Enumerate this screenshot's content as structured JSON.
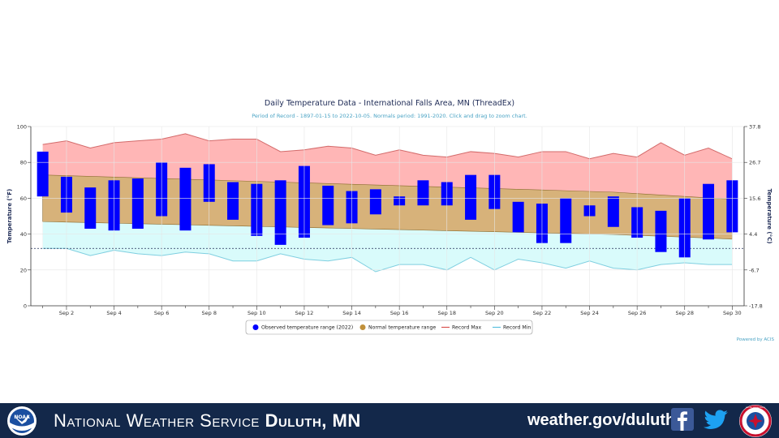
{
  "chart_data": {
    "type": "bar",
    "title": "Daily Temperature Data - International Falls Area, MN (ThreadEx)",
    "subtitle": "Period of Record - 1897-01-15 to 2022-10-05. Normals period: 1991-2020. Click and drag to zoom chart.",
    "ylabel": "Temperature (°F)",
    "ylabel_right": "Temperature (°C)",
    "ylim": [
      0,
      100
    ],
    "y_ticks": [
      "0",
      "20",
      "40",
      "60",
      "80",
      "100"
    ],
    "y_ticks_right": [
      "-17.8",
      "-6.7",
      "4.4",
      "15.6",
      "26.7",
      "37.8"
    ],
    "x_tick_labels": [
      "Sep 2",
      "Sep 4",
      "Sep 6",
      "Sep 8",
      "Sep 10",
      "Sep 12",
      "Sep 14",
      "Sep 16",
      "Sep 18",
      "Sep 20",
      "Sep 22",
      "Sep 24",
      "Sep 26",
      "Sep 28",
      "Sep 30"
    ],
    "days": [
      1,
      2,
      3,
      4,
      5,
      6,
      7,
      8,
      9,
      10,
      11,
      12,
      13,
      14,
      15,
      16,
      17,
      18,
      19,
      20,
      21,
      22,
      23,
      24,
      25,
      26,
      27,
      28,
      29,
      30
    ],
    "observed_low": [
      61,
      52,
      43,
      42,
      43,
      50,
      42,
      58,
      48,
      39,
      34,
      38,
      45,
      46,
      51,
      56,
      56,
      56,
      48,
      54,
      41,
      35,
      35,
      50,
      44,
      38,
      30,
      27,
      37,
      41
    ],
    "observed_high": [
      86,
      72,
      66,
      70,
      71,
      80,
      77,
      79,
      69,
      68,
      70,
      78,
      67,
      64,
      65,
      61,
      70,
      69,
      73,
      73,
      58,
      57,
      60,
      56,
      61,
      55,
      53,
      60,
      68,
      70
    ],
    "normal_high": [
      73,
      72.6,
      72.2,
      71.8,
      71.4,
      71,
      70.6,
      70.2,
      69.8,
      69.4,
      69,
      68.6,
      68.2,
      67.8,
      67.4,
      67,
      66.6,
      66.2,
      65.8,
      65.4,
      65,
      64.6,
      64.2,
      63.8,
      63.4,
      62.6,
      61.8,
      61,
      60.2,
      59.5
    ],
    "normal_low": [
      47,
      46.7,
      46.4,
      46.1,
      45.8,
      45.5,
      45.2,
      44.9,
      44.6,
      44.3,
      44,
      43.7,
      43.4,
      43.1,
      42.8,
      42.5,
      42.2,
      41.9,
      41.6,
      41.3,
      41,
      40.7,
      40.4,
      40.1,
      39.8,
      39.3,
      38.8,
      38.3,
      37.8,
      37.2
    ],
    "record_max": [
      90,
      92,
      88,
      91,
      92,
      93,
      96,
      92,
      93,
      93,
      86,
      87,
      89,
      88,
      84,
      87,
      84,
      83,
      86,
      85,
      83,
      86,
      86,
      82,
      85,
      83,
      91,
      84,
      88,
      82
    ],
    "record_min": [
      32,
      32,
      28,
      31,
      29,
      28,
      30,
      29,
      25,
      25,
      29,
      26,
      25,
      27,
      19,
      23,
      23,
      20,
      27,
      20,
      26,
      24,
      21,
      25,
      21,
      20,
      23,
      24,
      23,
      23
    ],
    "record_min_reference": 32,
    "legend": [
      {
        "label": "Observed temperature range (2022)",
        "color": "#0000ff"
      },
      {
        "label": "Normal temperature range",
        "color": "#c0903a"
      },
      {
        "label": "Record Max",
        "color": "#d9534f"
      },
      {
        "label": "Record Min",
        "color": "#5bc0de"
      }
    ],
    "legend_position": "bottom-center",
    "credit": "Powered by ACIS",
    "colors": {
      "observed": "#0000ff",
      "normal_fill": "#d7b27a",
      "normal_edge": "#8a6b2e",
      "record_max_fill": "#ffb6b6",
      "record_max_line": "#d36a6a",
      "record_min_fill": "#d9fbfb",
      "record_min_line": "#7fcfe0"
    }
  },
  "footer": {
    "title_prefix": "National Weather Service",
    "title_office": "Duluth, MN",
    "url": "weather.gov/duluth",
    "noaa_logo_text": "NOAA",
    "nws_logo_text": "NATIONAL WEATHER SERVICE",
    "colors": {
      "background": "#13284a",
      "facebook": "#3b5998",
      "twitter": "#1da1f2"
    }
  }
}
